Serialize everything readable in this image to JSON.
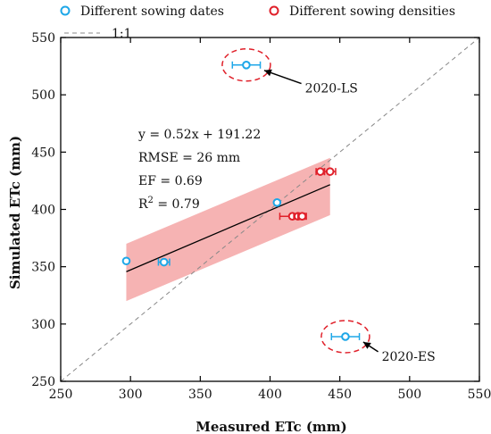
{
  "chart_data": {
    "type": "scatter",
    "title": "",
    "xlabel": "Measured ETc (mm)",
    "ylabel": "Simulated ETc (mm)",
    "xlim": [
      250,
      550
    ],
    "ylim": [
      250,
      550
    ],
    "xticks": [
      250,
      300,
      350,
      400,
      450,
      500,
      550
    ],
    "yticks": [
      250,
      300,
      350,
      400,
      450,
      500,
      550
    ],
    "grid": false,
    "legend": {
      "placement": "top",
      "entries": [
        {
          "label": "Different sowing dates",
          "color": "#1ea7e8",
          "marker": "circle"
        },
        {
          "label": "Different sowing densities",
          "color": "#e0202a",
          "marker": "circle"
        },
        {
          "label": "1:1",
          "color": "#888888",
          "marker": "dashed-line"
        }
      ]
    },
    "series": [
      {
        "name": "Different sowing dates",
        "color": "#1ea7e8",
        "points": [
          {
            "x": 297,
            "y": 355,
            "xerr": 0
          },
          {
            "x": 324,
            "y": 354,
            "xerr": 4
          },
          {
            "x": 405,
            "y": 406,
            "xerr": 0
          },
          {
            "x": 383,
            "y": 526,
            "xerr": 10
          },
          {
            "x": 454,
            "y": 289,
            "xerr": 10
          }
        ]
      },
      {
        "name": "Different sowing densities",
        "color": "#e0202a",
        "points": [
          {
            "x": 436,
            "y": 433,
            "xerr": 3
          },
          {
            "x": 443,
            "y": 433,
            "xerr": 4
          },
          {
            "x": 416,
            "y": 394,
            "xerr": 9
          },
          {
            "x": 420,
            "y": 394,
            "xerr": 3
          },
          {
            "x": 423,
            "y": 394,
            "xerr": 3
          }
        ]
      }
    ],
    "reference_line": {
      "label": "1:1",
      "from": [
        250,
        250
      ],
      "to": [
        550,
        550
      ],
      "style": "dashed",
      "color": "#888888"
    },
    "regression": {
      "slope": 0.52,
      "intercept": 191.22,
      "x_range": [
        297,
        443
      ],
      "line_color": "#000000",
      "band_color": "#f08080",
      "band_upper": [
        [
          297,
          370
        ],
        [
          443,
          445
        ]
      ],
      "band_lower": [
        [
          297,
          320
        ],
        [
          443,
          395
        ]
      ]
    },
    "stats_text": {
      "equation": "y = 0.52x + 191.22",
      "rmse": "RMSE = 26 mm",
      "ef": "EF = 0.69",
      "r2_prefix": "R",
      "r2_sup": "2",
      "r2_suffix": " = 0.79"
    },
    "annotations": [
      {
        "label": "2020-LS",
        "circle_center": [
          383,
          526
        ],
        "text_at": [
          425,
          502
        ]
      },
      {
        "label": "2020-ES",
        "circle_center": [
          454,
          289
        ],
        "text_at": [
          480,
          268
        ]
      }
    ]
  }
}
